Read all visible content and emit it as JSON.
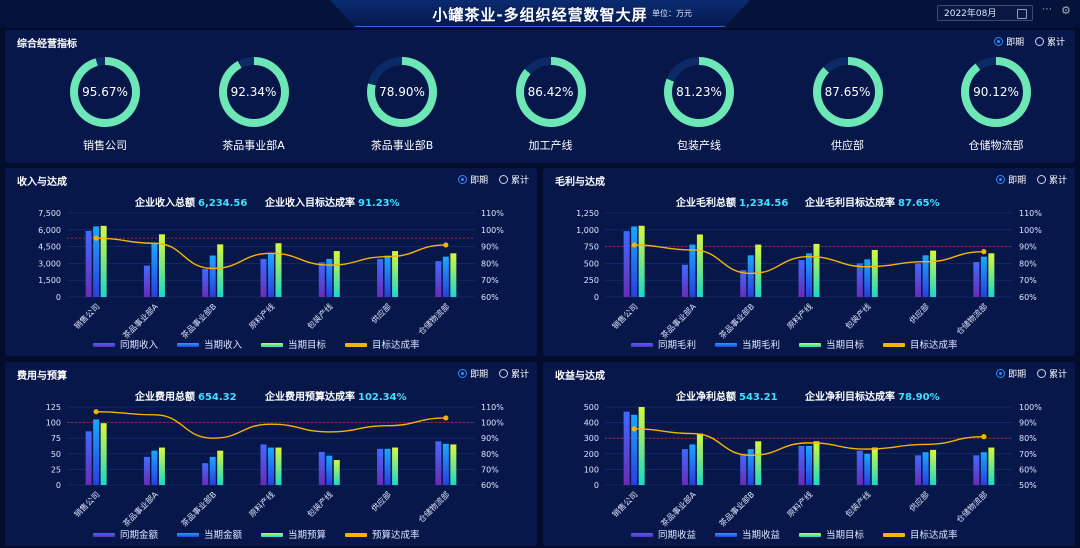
{
  "header": {
    "title": "小罐茶业-多组织经营数智大屏",
    "unit": "单位：万元",
    "date": "2022年08月"
  },
  "radio": {
    "current": "即期",
    "cumulative": "累计"
  },
  "overview": {
    "title": "综合经营指标",
    "items": [
      {
        "name": "销售公司",
        "value": "95.67%",
        "ratio": 0.9567
      },
      {
        "name": "茶品事业部A",
        "value": "92.34%",
        "ratio": 0.9234
      },
      {
        "name": "茶品事业部B",
        "value": "78.90%",
        "ratio": 0.789
      },
      {
        "name": "加工产线",
        "value": "86.42%",
        "ratio": 0.8642
      },
      {
        "name": "包装产线",
        "value": "81.23%",
        "ratio": 0.8123
      },
      {
        "name": "供应部",
        "value": "87.65%",
        "ratio": 0.8765
      },
      {
        "name": "仓储物流部",
        "value": "90.12%",
        "ratio": 0.9012
      }
    ]
  },
  "colors": {
    "prev": "#7a3cd6",
    "cur": "#1f7cff",
    "target": "#c8f534",
    "rate": "#f5b400",
    "ring": "#6ee7b7",
    "cyan": "#3fe0ff"
  },
  "chart_data": [
    {
      "type": "bar",
      "title": "收入与达成",
      "summary": [
        {
          "label": "企业收入总额",
          "value": "6,234.56"
        },
        {
          "label": "企业收入目标达成率",
          "value": "91.23%"
        }
      ],
      "categories": [
        "销售公司",
        "茶品事业部A",
        "茶品事业部B",
        "原料产线",
        "包装产线",
        "供应部",
        "仓储物流部"
      ],
      "ylim": [
        0,
        7500
      ],
      "yticks": [
        "0",
        "1,500",
        "3,000",
        "4,500",
        "6,000",
        "7,500"
      ],
      "y2lim": [
        60,
        110
      ],
      "y2ticks": [
        "60%",
        "70%",
        "80%",
        "90%",
        "100%",
        "110%"
      ],
      "ref": 95,
      "series": [
        {
          "name": "同期收入",
          "values": [
            5900,
            2800,
            2500,
            3400,
            3100,
            3400,
            3200
          ]
        },
        {
          "name": "当期收入",
          "values": [
            6300,
            4800,
            3700,
            3900,
            3400,
            3700,
            3600
          ]
        },
        {
          "name": "当期目标",
          "values": [
            6350,
            5600,
            4700,
            4800,
            4100,
            4100,
            3900
          ]
        },
        {
          "name": "目标达成率",
          "values": [
            95,
            92,
            77,
            86,
            79,
            84,
            91
          ]
        }
      ]
    },
    {
      "type": "bar",
      "title": "毛利与达成",
      "summary": [
        {
          "label": "企业毛利总额",
          "value": "1,234.56"
        },
        {
          "label": "企业毛利目标达成率",
          "value": "87.65%"
        }
      ],
      "categories": [
        "销售公司",
        "茶品事业部A",
        "茶品事业部B",
        "原料产线",
        "包装产线",
        "供应部",
        "仓储物流部"
      ],
      "ylim": [
        0,
        1250
      ],
      "yticks": [
        "0",
        "250",
        "500",
        "750",
        "1,000",
        "1,250"
      ],
      "y2lim": [
        60,
        110
      ],
      "y2ticks": [
        "60%",
        "70%",
        "80%",
        "90%",
        "100%",
        "110%"
      ],
      "ref": 90,
      "series": [
        {
          "name": "同期毛利",
          "values": [
            980,
            480,
            400,
            550,
            500,
            500,
            520
          ]
        },
        {
          "name": "当期毛利",
          "values": [
            1050,
            780,
            620,
            650,
            560,
            620,
            600
          ]
        },
        {
          "name": "当期目标",
          "values": [
            1060,
            930,
            780,
            790,
            700,
            690,
            650
          ]
        },
        {
          "name": "目标达成率",
          "values": [
            91,
            88,
            74,
            84,
            78,
            81,
            87
          ]
        }
      ]
    },
    {
      "type": "bar",
      "title": "费用与预算",
      "summary": [
        {
          "label": "企业费用总额",
          "value": "654.32"
        },
        {
          "label": "企业费用预算达成率",
          "value": "102.34%"
        }
      ],
      "categories": [
        "销售公司",
        "茶品事业部A",
        "茶品事业部B",
        "原料产线",
        "包装产线",
        "供应部",
        "仓储物流部"
      ],
      "ylim": [
        0,
        125
      ],
      "yticks": [
        "0",
        "25",
        "50",
        "75",
        "100",
        "125"
      ],
      "y2lim": [
        60,
        110
      ],
      "y2ticks": [
        "60%",
        "70%",
        "80%",
        "90%",
        "100%",
        "110%"
      ],
      "ref": 100,
      "series": [
        {
          "name": "同期金额",
          "values": [
            86,
            45,
            35,
            65,
            53,
            58,
            70
          ]
        },
        {
          "name": "当期金额",
          "values": [
            105,
            55,
            45,
            60,
            47,
            58,
            66
          ]
        },
        {
          "name": "当期预算",
          "values": [
            99,
            60,
            55,
            60,
            40,
            60,
            65
          ]
        },
        {
          "name": "预算达成率",
          "values": [
            107,
            105,
            90,
            99,
            94,
            98,
            103
          ]
        }
      ]
    },
    {
      "type": "bar",
      "title": "收益与达成",
      "summary": [
        {
          "label": "企业净利总额",
          "value": "543.21"
        },
        {
          "label": "企业净利目标达成率",
          "value": "78.90%"
        }
      ],
      "categories": [
        "销售公司",
        "茶品事业部A",
        "茶品事业部B",
        "原料产线",
        "包装产线",
        "供应部",
        "仓储物流部"
      ],
      "ylim": [
        0,
        500
      ],
      "yticks": [
        "0",
        "100",
        "200",
        "300",
        "400",
        "500"
      ],
      "y2lim": [
        50,
        100
      ],
      "y2ticks": [
        "50%",
        "60%",
        "70%",
        "80%",
        "90%",
        "100%"
      ],
      "ref": 80,
      "series": [
        {
          "name": "同期收益",
          "values": [
            470,
            230,
            200,
            250,
            220,
            190,
            190
          ]
        },
        {
          "name": "当期收益",
          "values": [
            450,
            260,
            230,
            250,
            200,
            210,
            210
          ]
        },
        {
          "name": "当期目标",
          "values": [
            500,
            330,
            280,
            280,
            240,
            225,
            240
          ]
        },
        {
          "name": "目标达成率",
          "values": [
            86,
            83,
            69,
            77,
            73,
            76,
            81
          ]
        }
      ]
    }
  ]
}
